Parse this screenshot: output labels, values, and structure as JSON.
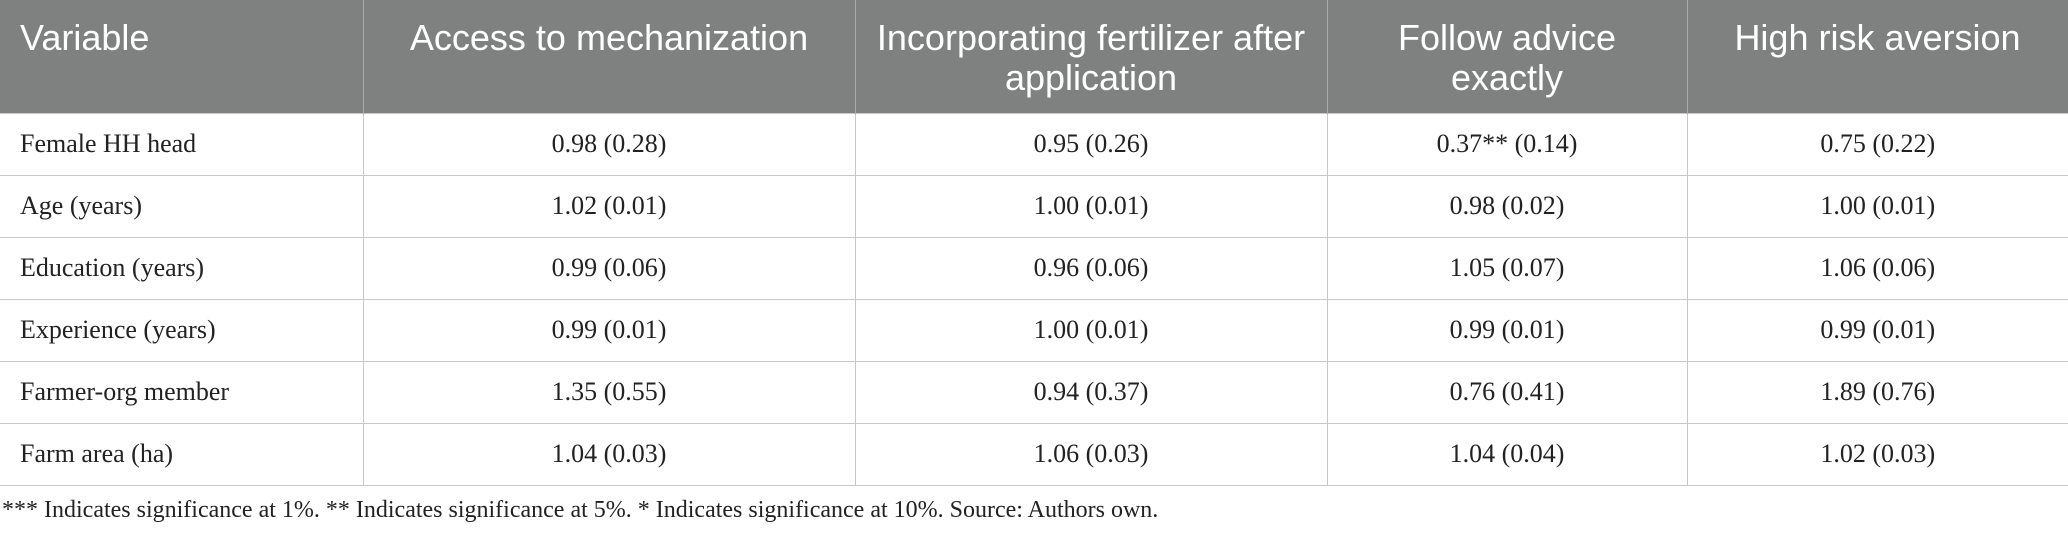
{
  "table": {
    "headers": [
      "Variable",
      "Access to mechanization",
      "Incorporating fertilizer after application",
      "Follow advice exactly",
      "High risk aversion"
    ],
    "rows": [
      [
        "Female HH head",
        "0.98 (0.28)",
        "0.95 (0.26)",
        "0.37** (0.14)",
        "0.75 (0.22)"
      ],
      [
        "Age (years)",
        "1.02 (0.01)",
        "1.00 (0.01)",
        "0.98 (0.02)",
        "1.00 (0.01)"
      ],
      [
        "Education (years)",
        "0.99 (0.06)",
        "0.96 (0.06)",
        "1.05 (0.07)",
        "1.06 (0.06)"
      ],
      [
        "Experience (years)",
        "0.99 (0.01)",
        "1.00 (0.01)",
        "0.99 (0.01)",
        "0.99 (0.01)"
      ],
      [
        "Farmer-org member",
        "1.35 (0.55)",
        "0.94 (0.37)",
        "0.76 (0.41)",
        "1.89 (0.76)"
      ],
      [
        "Farm area (ha)",
        "1.04 (0.03)",
        "1.06 (0.03)",
        "1.04 (0.04)",
        "1.02 (0.03)"
      ]
    ]
  },
  "footnote": "*** Indicates significance at 1%. ** Indicates significance at 5%. * Indicates significance at 10%. Source: Authors own."
}
